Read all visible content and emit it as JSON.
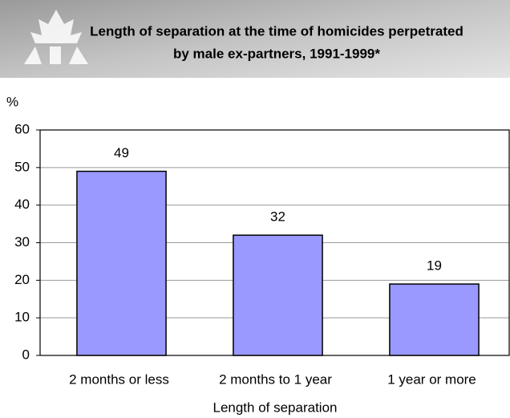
{
  "chart_data": {
    "type": "bar",
    "title": [
      "Length of separation at the time of homicides perpetrated",
      "by male ex-partners, 1991-1999*"
    ],
    "y_label": "%",
    "x_label": "Length of separation",
    "categories": [
      "2 months or less",
      "2 months to 1 year",
      "1 year or more"
    ],
    "values": [
      49,
      32,
      19
    ],
    "color": "#9999ff",
    "ylim": [
      0,
      60
    ],
    "yticks": [
      0,
      10,
      20,
      30,
      40,
      50,
      60
    ],
    "grid": true
  }
}
